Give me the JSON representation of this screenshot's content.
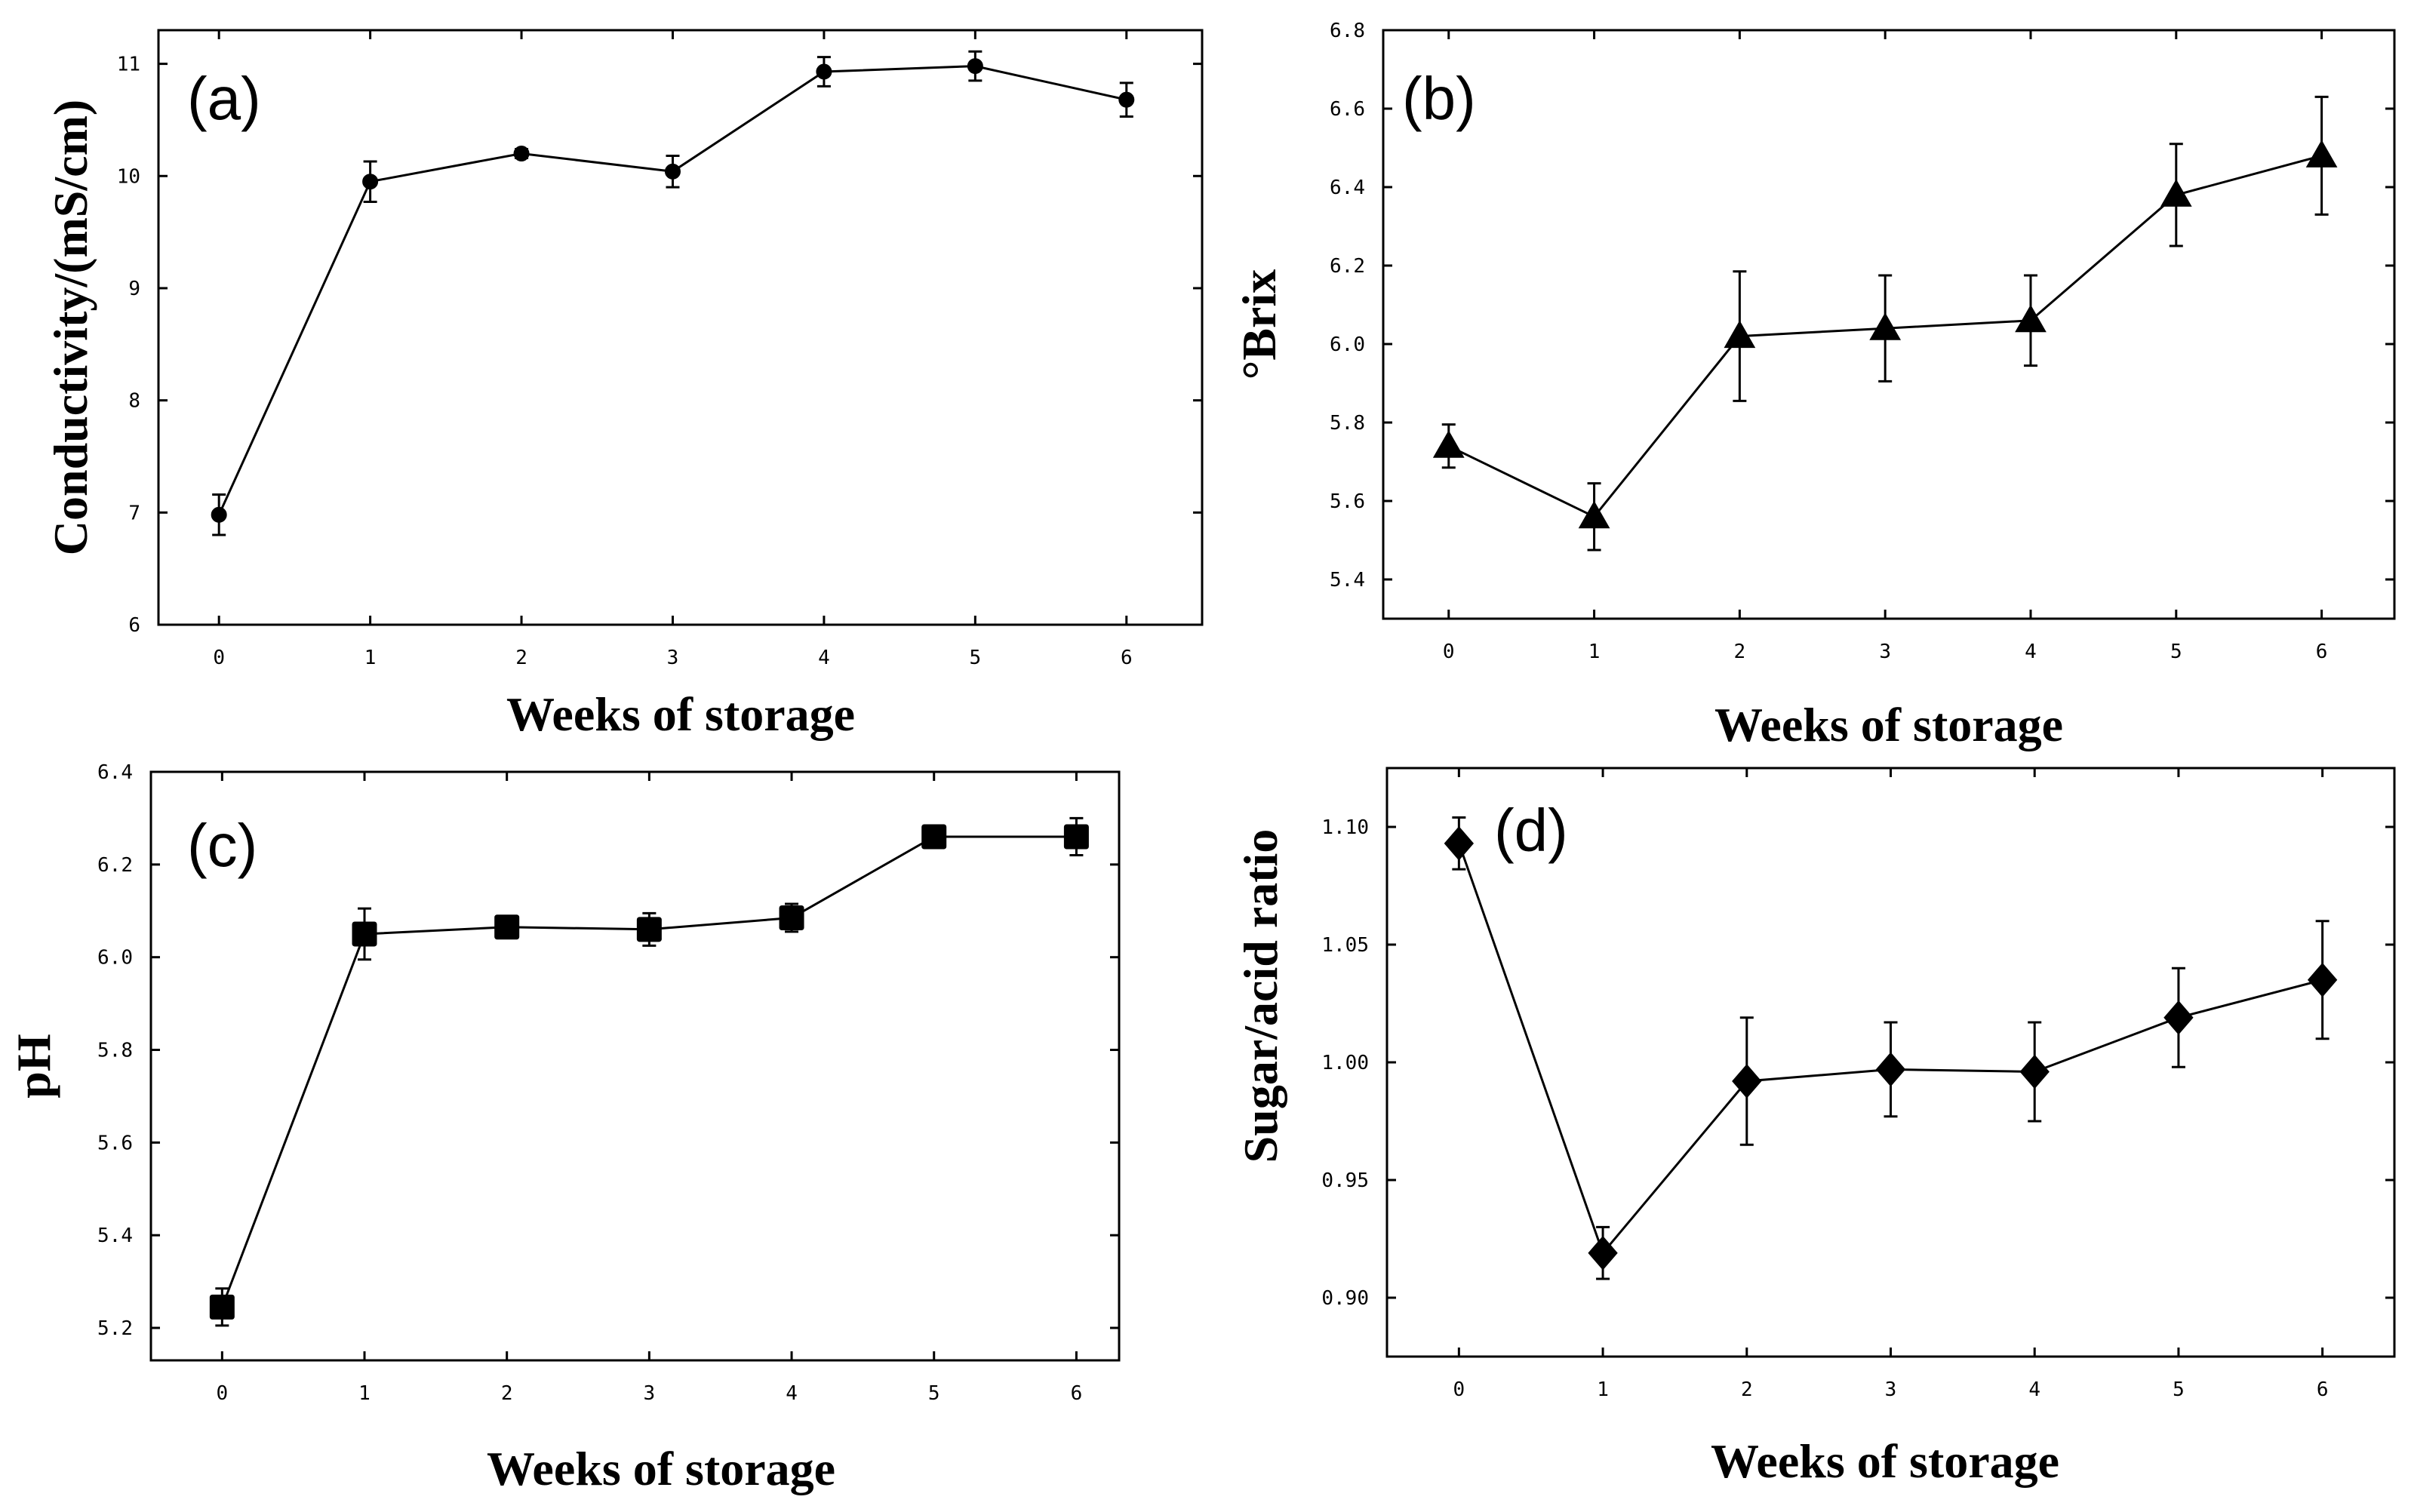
{
  "chart_data": [
    {
      "id": "a",
      "type": "line",
      "panel_label": "(a)",
      "xlabel": "Weeks of storage",
      "ylabel": "Conductivity/(mS/cm)",
      "x": [
        0,
        1,
        2,
        3,
        4,
        5,
        6
      ],
      "values": [
        6.98,
        9.95,
        10.2,
        10.04,
        10.93,
        10.98,
        10.68
      ],
      "errors": [
        0.18,
        0.18,
        0.04,
        0.14,
        0.13,
        0.13,
        0.15
      ],
      "marker": "circle",
      "xlim": [
        -0.4,
        6.5
      ],
      "ylim": [
        6,
        11.3
      ],
      "xticks": [
        "0",
        "1",
        "2",
        "3",
        "4",
        "5",
        "6"
      ],
      "yticks": [
        "6",
        "7",
        "8",
        "9",
        "10",
        "11"
      ]
    },
    {
      "id": "b",
      "type": "line",
      "panel_label": "(b)",
      "xlabel": "Weeks of storage",
      "ylabel": "°Brix",
      "x": [
        0,
        1,
        2,
        3,
        4,
        5,
        6
      ],
      "values": [
        5.74,
        5.56,
        6.02,
        6.04,
        6.06,
        6.38,
        6.48
      ],
      "errors": [
        0.055,
        0.085,
        0.165,
        0.135,
        0.115,
        0.13,
        0.15
      ],
      "marker": "triangle",
      "xlim": [
        -0.45,
        6.5
      ],
      "ylim": [
        5.3,
        6.8
      ],
      "xticks": [
        "0",
        "1",
        "2",
        "3",
        "4",
        "5",
        "6"
      ],
      "yticks": [
        "5.4",
        "5.6",
        "5.8",
        "6.0",
        "6.2",
        "6.4",
        "6.6",
        "6.8"
      ]
    },
    {
      "id": "c",
      "type": "line",
      "panel_label": "(c)",
      "xlabel": "Weeks of storage",
      "ylabel": "pH",
      "x": [
        0,
        1,
        2,
        3,
        4,
        5,
        6
      ],
      "values": [
        5.245,
        6.05,
        6.065,
        6.06,
        6.085,
        6.26,
        6.26
      ],
      "errors": [
        0.04,
        0.055,
        0.015,
        0.035,
        0.03,
        0.02,
        0.04
      ],
      "marker": "square",
      "xlim": [
        -0.5,
        6.3
      ],
      "ylim": [
        5.13,
        6.4
      ],
      "xticks": [
        "0",
        "1",
        "2",
        "3",
        "4",
        "5",
        "6"
      ],
      "yticks": [
        "5.2",
        "5.4",
        "5.6",
        "5.8",
        "6.0",
        "6.2",
        "6.4"
      ]
    },
    {
      "id": "d",
      "type": "line",
      "panel_label": "(d)",
      "xlabel": "Weeks of storage",
      "ylabel": "Sugar/acid ratio",
      "x": [
        0,
        1,
        2,
        3,
        4,
        5,
        6
      ],
      "values": [
        1.093,
        0.919,
        0.992,
        0.997,
        0.996,
        1.019,
        1.035
      ],
      "errors": [
        0.011,
        0.011,
        0.027,
        0.02,
        0.021,
        0.021,
        0.025
      ],
      "marker": "diamond",
      "xlim": [
        -0.5,
        6.5
      ],
      "ylim": [
        0.875,
        1.125
      ],
      "xticks": [
        "0",
        "1",
        "2",
        "3",
        "4",
        "5",
        "6"
      ],
      "yticks": [
        "0.90",
        "0.95",
        "1.00",
        "1.05",
        "1.10"
      ]
    }
  ]
}
